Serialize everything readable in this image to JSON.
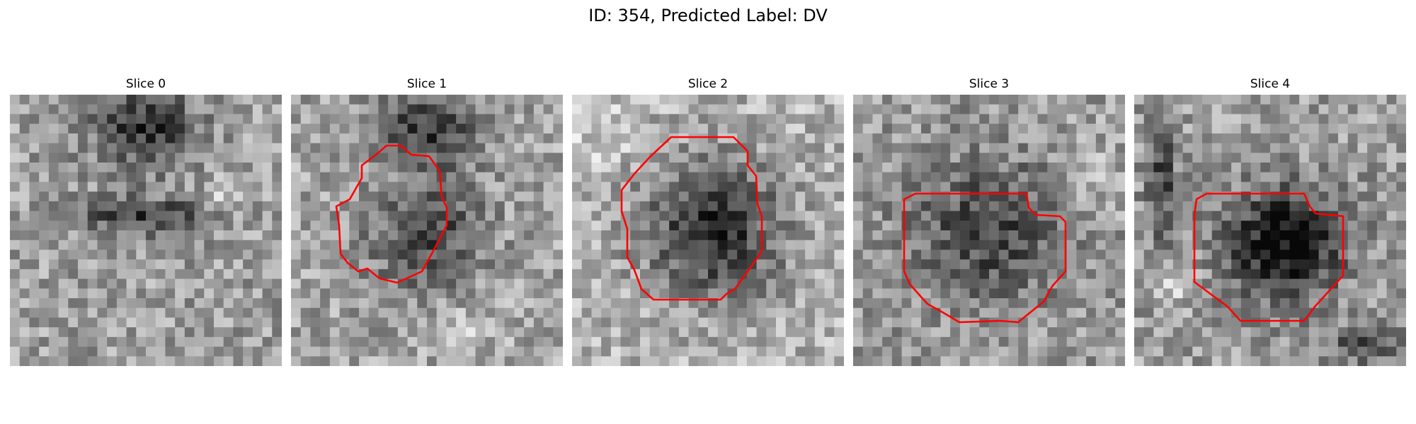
{
  "figure": {
    "title": "ID: 354, Predicted Label: DV"
  },
  "panels": [
    {
      "title": "Slice 0",
      "has_contour": false
    },
    {
      "title": "Slice 1",
      "has_contour": true
    },
    {
      "title": "Slice 2",
      "has_contour": true
    },
    {
      "title": "Slice 3",
      "has_contour": true
    },
    {
      "title": "Slice 4",
      "has_contour": true
    }
  ],
  "colors": {
    "contour": "#ff0000"
  }
}
